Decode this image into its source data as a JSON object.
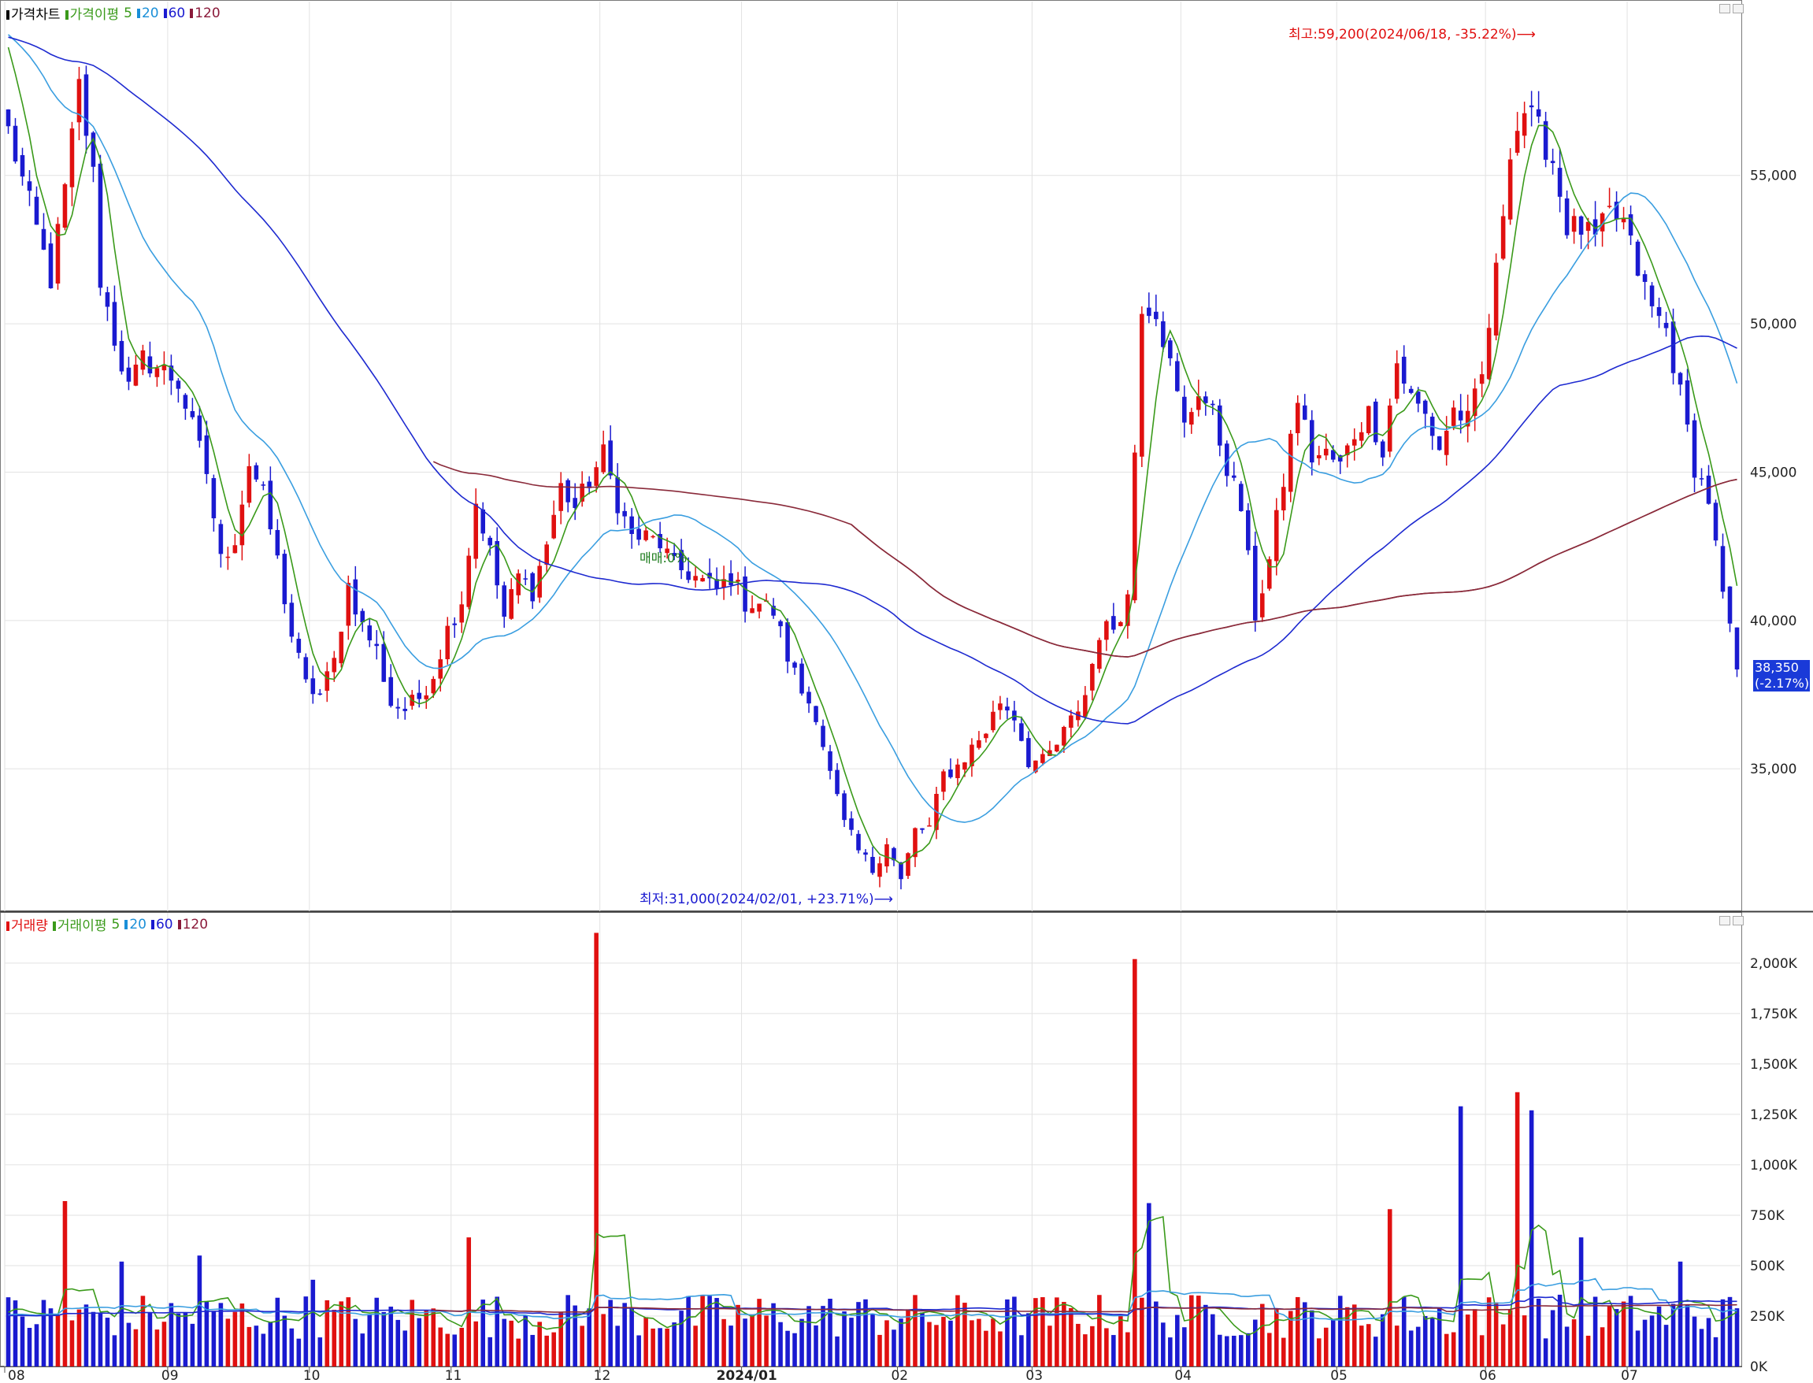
{
  "top_legend": {
    "items": [
      {
        "label": "가격차트",
        "color": "#000000"
      },
      {
        "label": "가격이평",
        "color": "#3a9a1a"
      },
      {
        "label": "5",
        "color": "#3a9a1a"
      },
      {
        "label": "20",
        "color": "#1a8fd8"
      },
      {
        "label": "60",
        "color": "#1a1ad0"
      },
      {
        "label": "120",
        "color": "#8a1a3a"
      }
    ]
  },
  "bottom_legend": {
    "items": [
      {
        "label": "거래량",
        "color": "#e01010"
      },
      {
        "label": "거래이평",
        "color": "#3a9a1a"
      },
      {
        "label": "5",
        "color": "#3a9a1a"
      },
      {
        "label": "20",
        "color": "#1a8fd8"
      },
      {
        "label": "60",
        "color": "#1a1ad0"
      },
      {
        "label": "120",
        "color": "#8a1a3a"
      }
    ]
  },
  "annotations": {
    "high": "최고:59,200(2024/06/18, -35.22%)⟶",
    "low": "최저:31,000(2024/02/01, +23.71%)⟶",
    "mid": "매매:0%",
    "current_price": "38,350",
    "current_change": "(-2.17%)"
  },
  "colors": {
    "up": "#e01010",
    "down": "#1a1ad0",
    "ma5": "#3a9a1a",
    "ma20": "#3a9ee0",
    "ma60": "#1e2ad0",
    "ma120": "#8a2a3a",
    "grid": "#e2e2e2"
  },
  "chart_data": [
    {
      "type": "candlestick",
      "title": "가격차트",
      "y_tick_labels": [
        "55,000",
        "50,000",
        "45,000",
        "40,000",
        "35,000"
      ],
      "y_ticks": [
        55000,
        50000,
        45000,
        40000,
        35000
      ],
      "ylim": [
        30200,
        60700
      ],
      "x_tick_labels": [
        "08",
        "09",
        "10",
        "11",
        "12",
        "2024/01",
        "02",
        "03",
        "04",
        "05",
        "06",
        "07"
      ],
      "x_tick_index": [
        0,
        23,
        43,
        63,
        84,
        104,
        126,
        145,
        166,
        188,
        209,
        229
      ],
      "series": [
        {
          "name": "가격이평 5"
        },
        {
          "name": "20"
        },
        {
          "name": "60"
        },
        {
          "name": "120"
        }
      ],
      "close_points": [
        [
          0,
          56500
        ],
        [
          3,
          54000
        ],
        [
          6,
          51500
        ],
        [
          8,
          54500
        ],
        [
          10,
          58000
        ],
        [
          12,
          55000
        ],
        [
          13,
          51500
        ],
        [
          15,
          49500
        ],
        [
          17,
          47800
        ],
        [
          19,
          48800
        ],
        [
          22,
          48400
        ],
        [
          24,
          48000
        ],
        [
          26,
          46500
        ],
        [
          28,
          45000
        ],
        [
          30,
          42000
        ],
        [
          32,
          42800
        ],
        [
          34,
          45300
        ],
        [
          36,
          44200
        ],
        [
          38,
          42000
        ],
        [
          40,
          39500
        ],
        [
          42,
          37800
        ],
        [
          44,
          37500
        ],
        [
          46,
          38600
        ],
        [
          48,
          41200
        ],
        [
          50,
          39800
        ],
        [
          52,
          39000
        ],
        [
          54,
          37200
        ],
        [
          56,
          37000
        ],
        [
          58,
          37400
        ],
        [
          60,
          38200
        ],
        [
          62,
          39700
        ],
        [
          64,
          40700
        ],
        [
          66,
          44000
        ],
        [
          68,
          42300
        ],
        [
          70,
          40100
        ],
        [
          72,
          41500
        ],
        [
          74,
          41000
        ],
        [
          76,
          42600
        ],
        [
          78,
          44500
        ],
        [
          80,
          43800
        ],
        [
          82,
          44700
        ],
        [
          84,
          45600
        ],
        [
          86,
          44000
        ],
        [
          88,
          42800
        ],
        [
          90,
          42800
        ],
        [
          92,
          42600
        ],
        [
          94,
          41800
        ],
        [
          96,
          41600
        ],
        [
          98,
          41300
        ],
        [
          100,
          41000
        ],
        [
          102,
          41500
        ],
        [
          104,
          40600
        ],
        [
          106,
          40600
        ],
        [
          108,
          40300
        ],
        [
          110,
          38800
        ],
        [
          112,
          37600
        ],
        [
          114,
          36900
        ],
        [
          116,
          34800
        ],
        [
          118,
          33100
        ],
        [
          120,
          32200
        ],
        [
          122,
          31600
        ],
        [
          124,
          32600
        ],
        [
          126,
          31200
        ],
        [
          128,
          32900
        ],
        [
          130,
          33000
        ],
        [
          132,
          34800
        ],
        [
          134,
          35100
        ],
        [
          136,
          35700
        ],
        [
          138,
          36300
        ],
        [
          140,
          37300
        ],
        [
          142,
          36800
        ],
        [
          144,
          35300
        ],
        [
          146,
          35200
        ],
        [
          148,
          35800
        ],
        [
          150,
          36600
        ],
        [
          152,
          37500
        ],
        [
          154,
          39600
        ],
        [
          156,
          39800
        ],
        [
          158,
          40800
        ],
        [
          160,
          50700
        ],
        [
          162,
          50500
        ],
        [
          164,
          48600
        ],
        [
          166,
          46500
        ],
        [
          168,
          47800
        ],
        [
          170,
          46900
        ],
        [
          172,
          45200
        ],
        [
          174,
          43800
        ],
        [
          176,
          40200
        ],
        [
          178,
          42000
        ],
        [
          180,
          44700
        ],
        [
          182,
          47500
        ],
        [
          184,
          45500
        ],
        [
          186,
          45600
        ],
        [
          188,
          45200
        ],
        [
          190,
          46300
        ],
        [
          192,
          47000
        ],
        [
          194,
          45800
        ],
        [
          196,
          48700
        ],
        [
          198,
          47500
        ],
        [
          200,
          46900
        ],
        [
          202,
          45800
        ],
        [
          204,
          47100
        ],
        [
          206,
          46700
        ],
        [
          208,
          48200
        ],
        [
          210,
          51700
        ],
        [
          212,
          56000
        ],
        [
          214,
          57200
        ],
        [
          216,
          56500
        ],
        [
          218,
          55500
        ],
        [
          220,
          53300
        ],
        [
          222,
          53200
        ],
        [
          224,
          52800
        ],
        [
          226,
          53700
        ],
        [
          228,
          53400
        ],
        [
          230,
          51800
        ],
        [
          232,
          50500
        ],
        [
          234,
          49800
        ],
        [
          236,
          47600
        ],
        [
          238,
          45200
        ],
        [
          240,
          44100
        ],
        [
          242,
          40800
        ],
        [
          244,
          38350
        ]
      ],
      "volume": {
        "title": "거래량",
        "y_tick_labels": [
          "2,000K",
          "1,750K",
          "1,500K",
          "1,250K",
          "1,000K",
          "750K",
          "500K",
          "250K",
          "0K"
        ],
        "y_ticks": [
          2000000,
          1750000,
          1500000,
          1250000,
          1000000,
          750000,
          500000,
          250000,
          0
        ],
        "ylim": [
          0,
          2140000
        ],
        "spikes": [
          [
            8,
            820000
          ],
          [
            16,
            520000
          ],
          [
            27,
            550000
          ],
          [
            43,
            430000
          ],
          [
            65,
            640000
          ],
          [
            83,
            2150000
          ],
          [
            159,
            2020000
          ],
          [
            161,
            810000
          ],
          [
            195,
            780000
          ],
          [
            205,
            1290000
          ],
          [
            213,
            1360000
          ],
          [
            215,
            1270000
          ],
          [
            222,
            640000
          ],
          [
            236,
            520000
          ]
        ],
        "base_level": 250000
      }
    }
  ]
}
